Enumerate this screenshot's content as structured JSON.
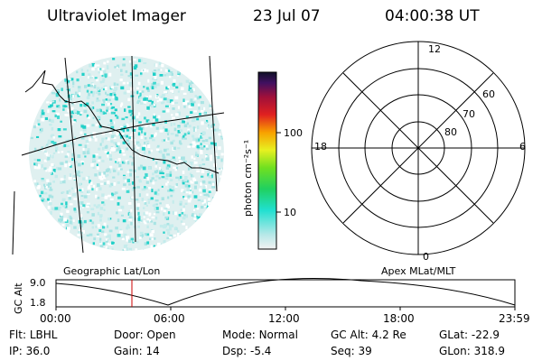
{
  "header": {
    "instrument": "Ultraviolet Imager",
    "date": "23 Jul 07",
    "time": "04:00:38 UT"
  },
  "colorbar": {
    "unit_label": "photon cm⁻²s⁻¹",
    "ticks": [
      "100",
      "10"
    ]
  },
  "polar_plot": {
    "mlt_labels": {
      "top": "12",
      "left": "18",
      "right": "6",
      "bottom": "0"
    },
    "lat_labels": [
      "60",
      "70",
      "80"
    ]
  },
  "labels": {
    "left_panel": "Geographic Lat/Lon",
    "right_panel": "Apex MLat/MLT"
  },
  "altitude_plot": {
    "ylabel": "GC Alt",
    "y_ticks": [
      "9.0",
      "1.8"
    ],
    "x_ticks": [
      "00:00",
      "06:00",
      "12:00",
      "18:00",
      "23:59"
    ],
    "marker_time": "04:00",
    "marker_color": "#cc0000"
  },
  "info": {
    "row1": [
      {
        "label": "Flt:",
        "value": "LBHL"
      },
      {
        "label": "Door:",
        "value": "Open"
      },
      {
        "label": "Mode:",
        "value": "Normal"
      },
      {
        "label": "GC Alt:",
        "value": "4.2 Re"
      },
      {
        "label": "GLat:",
        "value": "-22.9"
      }
    ],
    "row2": [
      {
        "label": "IP:",
        "value": "36.0"
      },
      {
        "label": "Gain:",
        "value": "14"
      },
      {
        "label": "Dsp:",
        "value": "-5.4"
      },
      {
        "label": "Seq:",
        "value": "39"
      },
      {
        "label": "GLon:",
        "value": "318.9"
      }
    ]
  }
}
